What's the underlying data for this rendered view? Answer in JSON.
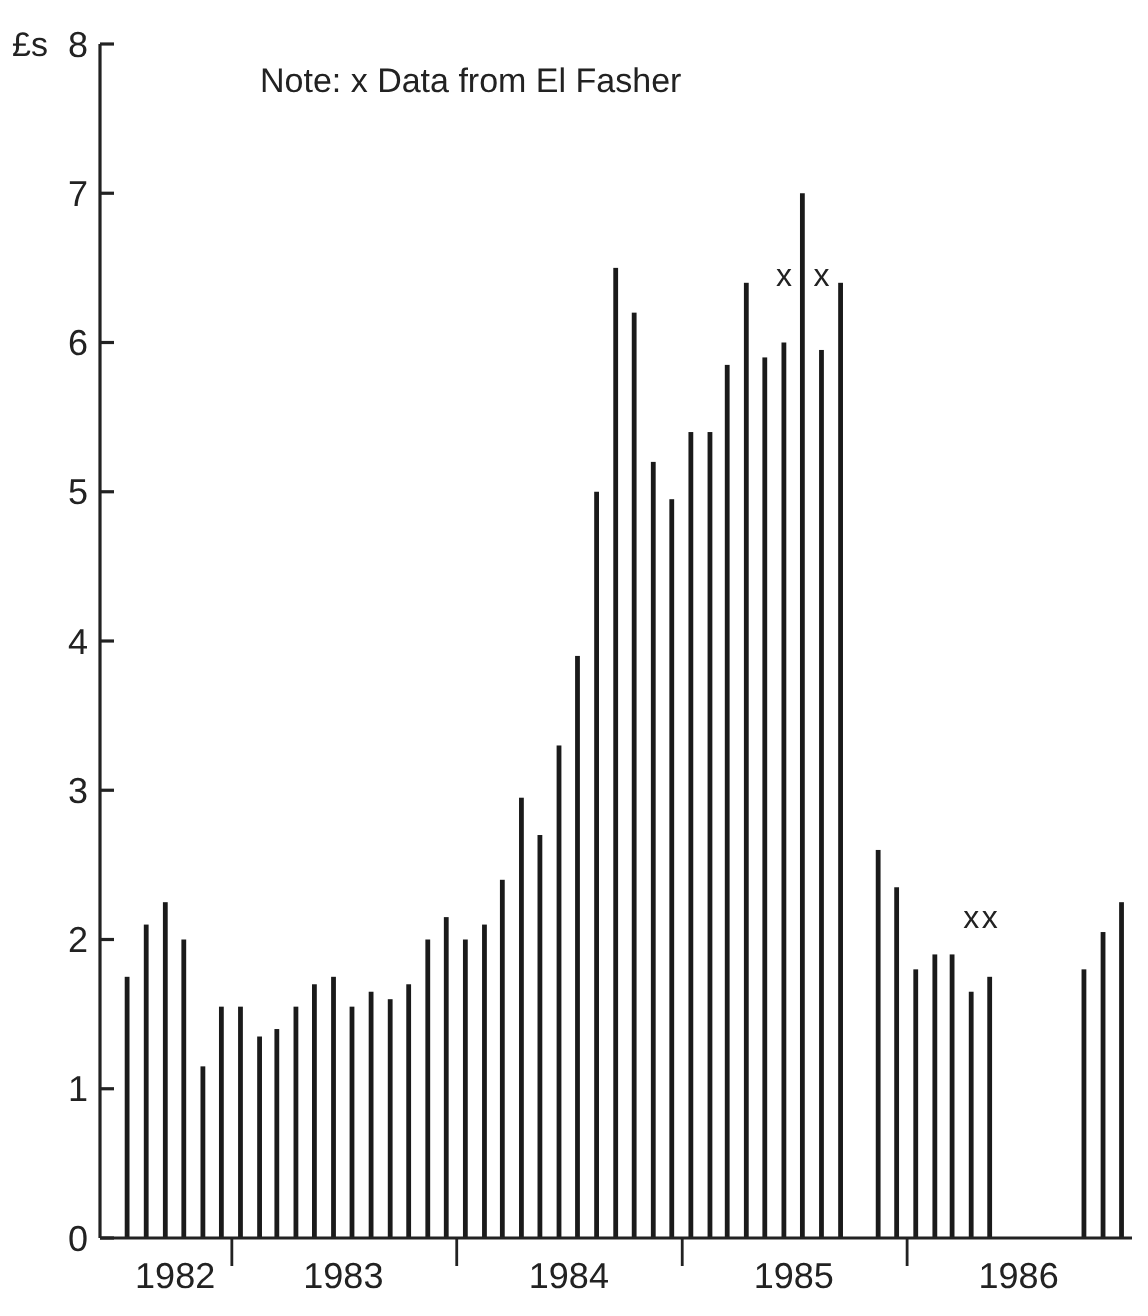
{
  "chart_data": {
    "type": "bar",
    "ylabel": "£s",
    "annotations": [
      "Note: x Data from El Fasher",
      {
        "text": "x",
        "x": "1985-06-15",
        "y": 6.0
      },
      {
        "text": "x",
        "x": "1985-08-15",
        "y": 5.95
      },
      {
        "text": "x",
        "x": "1986-04-15",
        "y": 1.65
      },
      {
        "text": "x",
        "x": "1986-05-15",
        "y": 1.75
      }
    ],
    "x": [
      "1982-07-15",
      "1982-08-15",
      "1982-09-15",
      "1982-10-15",
      "1982-11-15",
      "1982-12-15",
      "1983-01-15",
      "1983-02-15",
      "1983-03-15",
      "1983-04-15",
      "1983-05-15",
      "1983-06-15",
      "1983-07-15",
      "1983-08-15",
      "1983-09-15",
      "1983-10-15",
      "1983-11-15",
      "1983-12-15",
      "1984-01-15",
      "1984-02-15",
      "1984-03-15",
      "1984-04-15",
      "1984-05-15",
      "1984-06-15",
      "1984-07-15",
      "1984-08-15",
      "1984-09-15",
      "1984-10-15",
      "1984-11-15",
      "1984-12-15",
      "1985-01-15",
      "1985-02-15",
      "1985-03-15",
      "1985-04-15",
      "1985-05-15",
      "1985-06-15",
      "1985-07-15",
      "1985-08-15",
      "1985-09-15",
      "1985-10-15",
      "1985-11-15",
      "1985-12-15",
      "1986-01-15",
      "1986-02-15",
      "1986-03-15",
      "1986-04-15",
      "1986-05-15",
      "1986-06-15",
      "1986-07-15",
      "1986-08-15",
      "1986-09-15",
      "1986-10-15",
      "1986-11-15",
      "1986-12-15"
    ],
    "values": [
      1.75,
      2.1,
      2.25,
      2.0,
      1.15,
      1.55,
      1.55,
      1.35,
      1.4,
      1.55,
      1.7,
      1.75,
      1.55,
      1.65,
      1.6,
      1.7,
      2.0,
      2.15,
      2.0,
      2.1,
      2.4,
      2.95,
      2.7,
      3.3,
      3.9,
      5.0,
      6.5,
      6.2,
      5.2,
      4.95,
      5.4,
      5.4,
      5.85,
      6.4,
      5.9,
      6.0,
      7.0,
      5.95,
      6.4,
      null,
      2.6,
      2.35,
      1.8,
      1.9,
      1.9,
      1.65,
      1.75,
      null,
      null,
      null,
      null,
      1.8,
      2.05,
      2.25
    ],
    "color": "#1a1a1a",
    "ylim": [
      0,
      8
    ],
    "yticks": [
      0,
      1,
      2,
      3,
      4,
      5,
      6,
      7,
      8
    ],
    "xlim": [
      "1982-06",
      "1987-01"
    ],
    "xticks": [
      {
        "value": "1982-10",
        "label": "1982"
      },
      {
        "value": "1983-01",
        "label": null
      },
      {
        "value": "1983-07",
        "label": "1983"
      },
      {
        "value": "1984-01",
        "label": null
      },
      {
        "value": "1984-07",
        "label": "1984"
      },
      {
        "value": "1985-01",
        "label": null
      },
      {
        "value": "1985-07",
        "label": "1985"
      },
      {
        "value": "1986-01",
        "label": null
      },
      {
        "value": "1986-07",
        "label": "1986"
      }
    ],
    "grid": false
  }
}
